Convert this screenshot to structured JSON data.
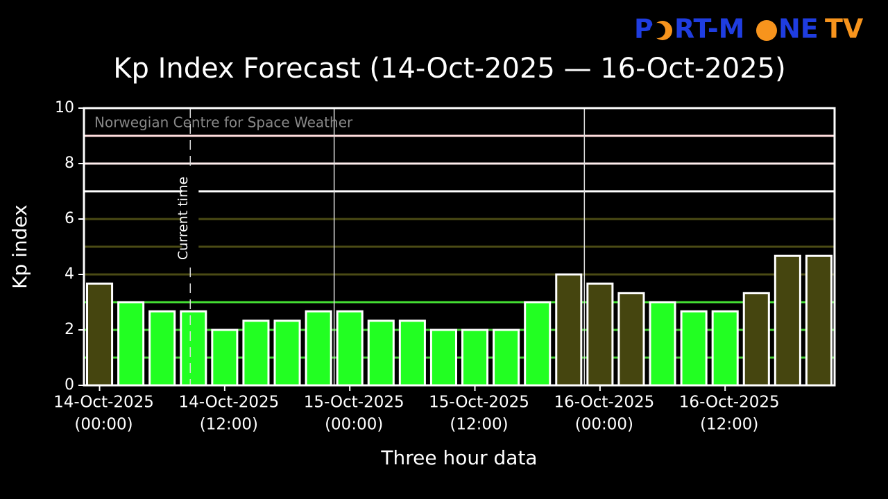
{
  "chart_data": {
    "type": "bar",
    "title": "Kp Index Forecast (14-Oct-2025 — 16-Oct-2025)",
    "logo": {
      "parts": [
        "P",
        "RT-M",
        "NE"
      ],
      "suffix": "TV"
    },
    "annotation": "Norwegian Centre for Space Weather",
    "xlabel": "Three hour data",
    "ylabel": "Kp index",
    "x": [
      0,
      3,
      6,
      9,
      12,
      15,
      18,
      21,
      24,
      27,
      30,
      33,
      36,
      39,
      42,
      45,
      48,
      51,
      54,
      57,
      60,
      63,
      66,
      69
    ],
    "values": [
      3.67,
      3,
      2.67,
      2.67,
      2,
      2.33,
      2.33,
      2.67,
      2.67,
      2.33,
      2.33,
      2,
      2,
      2,
      3,
      4,
      3.67,
      3.33,
      3,
      2.67,
      2.67,
      3.33,
      4.67,
      4.67
    ],
    "colors": [
      "#45450f",
      "#22ff22",
      "#22ff22",
      "#22ff22",
      "#22ff22",
      "#22ff22",
      "#22ff22",
      "#22ff22",
      "#22ff22",
      "#22ff22",
      "#22ff22",
      "#22ff22",
      "#22ff22",
      "#22ff22",
      "#22ff22",
      "#45450f",
      "#45450f",
      "#45450f",
      "#22ff22",
      "#22ff22",
      "#22ff22",
      "#45450f",
      "#45450f",
      "#45450f"
    ],
    "xlim": [
      -1.5,
      70.5
    ],
    "xticks": [
      {
        "value": 0,
        "label": [
          "14-Oct-2025",
          "(00:00)"
        ]
      },
      {
        "value": 12,
        "label": [
          "14-Oct-2025",
          "(12:00)"
        ]
      },
      {
        "value": 24,
        "label": [
          "15-Oct-2025",
          "(00:00)"
        ]
      },
      {
        "value": 36,
        "label": [
          "15-Oct-2025",
          "(12:00)"
        ]
      },
      {
        "value": 48,
        "label": [
          "16-Oct-2025",
          "(00:00)"
        ]
      },
      {
        "value": 60,
        "label": [
          "16-Oct-2025",
          "(12:00)"
        ]
      }
    ],
    "day_lines": [
      22.5,
      46.5
    ],
    "current_time": {
      "value": 8.7,
      "label": "Current time"
    },
    "ylim": [
      0,
      10
    ],
    "yticks": [
      0,
      2,
      4,
      6,
      8,
      10
    ],
    "level_lines": [
      {
        "value": 1,
        "color": "#44cc33"
      },
      {
        "value": 2,
        "color": "#44cc33"
      },
      {
        "value": 3,
        "color": "#44dd33"
      },
      {
        "value": 4,
        "color": "#4b4b15"
      },
      {
        "value": 5,
        "color": "#4b4b15"
      },
      {
        "value": 6,
        "color": "#4b4b15"
      },
      {
        "value": 7,
        "color": "#ffffff"
      },
      {
        "value": 8,
        "color": "#ffeeee"
      },
      {
        "value": 9,
        "color": "#ffdddd"
      }
    ]
  }
}
